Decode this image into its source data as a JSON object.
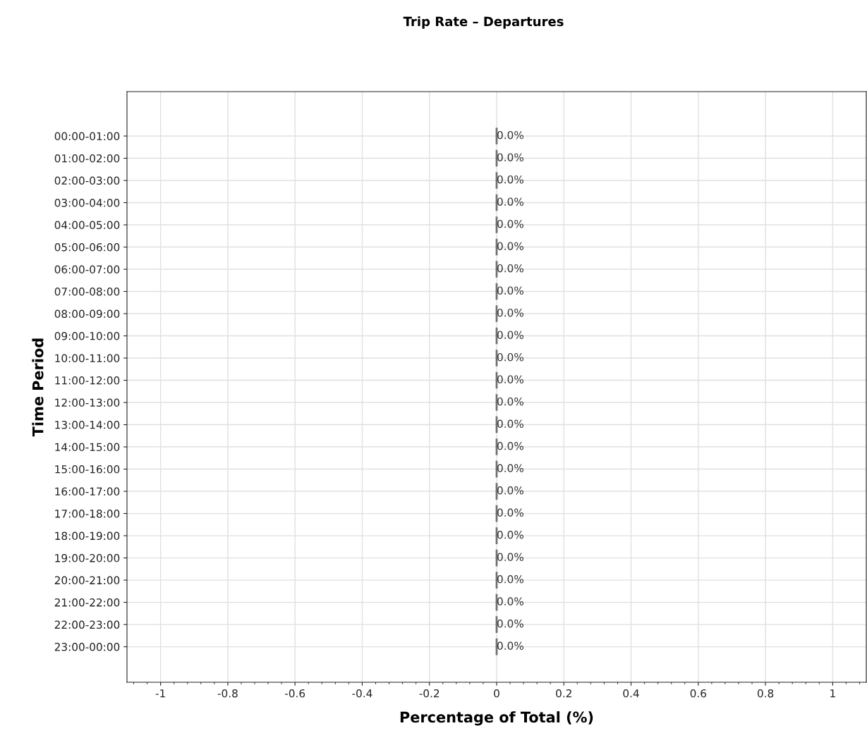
{
  "chart_data": {
    "type": "bar",
    "orientation": "horizontal",
    "title": "Trip Rate – Departures",
    "xlabel": "Percentage of Total (%)",
    "ylabel": "Time Period",
    "categories": [
      "00:00-01:00",
      "01:00-02:00",
      "02:00-03:00",
      "03:00-04:00",
      "04:00-05:00",
      "05:00-06:00",
      "06:00-07:00",
      "07:00-08:00",
      "08:00-09:00",
      "09:00-10:00",
      "10:00-11:00",
      "11:00-12:00",
      "12:00-13:00",
      "13:00-14:00",
      "14:00-15:00",
      "15:00-16:00",
      "16:00-17:00",
      "17:00-18:00",
      "18:00-19:00",
      "19:00-20:00",
      "20:00-21:00",
      "21:00-22:00",
      "22:00-23:00",
      "23:00-00:00"
    ],
    "values": [
      0,
      0,
      0,
      0,
      0,
      0,
      0,
      0,
      0,
      0,
      0,
      0,
      0,
      0,
      0,
      0,
      0,
      0,
      0,
      0,
      0,
      0,
      0,
      0
    ],
    "value_labels": [
      "0.0%",
      "0.0%",
      "0.0%",
      "0.0%",
      "0.0%",
      "0.0%",
      "0.0%",
      "0.0%",
      "0.0%",
      "0.0%",
      "0.0%",
      "0.0%",
      "0.0%",
      "0.0%",
      "0.0%",
      "0.0%",
      "0.0%",
      "0.0%",
      "0.0%",
      "0.0%",
      "0.0%",
      "0.0%",
      "0.0%",
      "0.0%"
    ],
    "color": "#707070",
    "xlim": [
      -1.1,
      1.1
    ],
    "xticks": [
      {
        "value": -1,
        "label": "-1"
      },
      {
        "value": -0.8,
        "label": "-0.8"
      },
      {
        "value": -0.6,
        "label": "-0.6"
      },
      {
        "value": -0.4,
        "label": "-0.4"
      },
      {
        "value": -0.2,
        "label": "-0.2"
      },
      0,
      0.2,
      0.4,
      0.6,
      0.8,
      1
    ],
    "grid": true,
    "legend": false
  }
}
